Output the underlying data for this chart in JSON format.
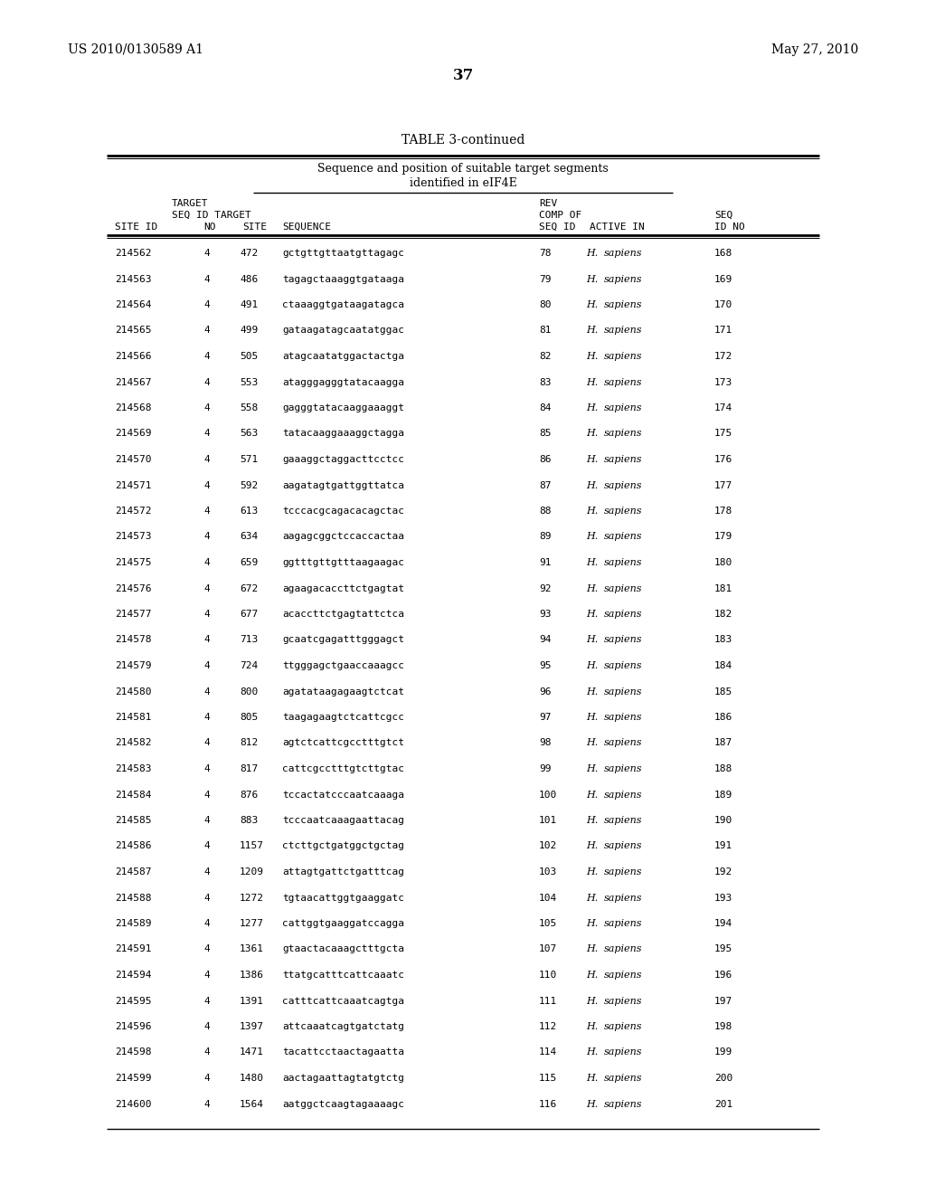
{
  "title_left": "US 2010/0130589 A1",
  "title_right": "May 27, 2010",
  "page_num": "37",
  "table_title": "TABLE 3-continued",
  "subtitle1": "Sequence and position of suitable target segments",
  "subtitle2": "identified in eIF4E",
  "rows": [
    [
      "214562",
      "4",
      "472",
      "gctgttgttaatgttagagc",
      "78",
      "H.",
      "sapiens",
      "168"
    ],
    [
      "214563",
      "4",
      "486",
      "tagagctaaaggtgataaga",
      "79",
      "H.",
      "sapiens",
      "169"
    ],
    [
      "214564",
      "4",
      "491",
      "ctaaaggtgataagatagca",
      "80",
      "H.",
      "sapiens",
      "170"
    ],
    [
      "214565",
      "4",
      "499",
      "gataagatagcaatatggac",
      "81",
      "H.",
      "sapiens",
      "171"
    ],
    [
      "214566",
      "4",
      "505",
      "atagcaatatggactactga",
      "82",
      "H.",
      "sapiens",
      "172"
    ],
    [
      "214567",
      "4",
      "553",
      "atagggagggtatacaagga",
      "83",
      "H.",
      "sapiens",
      "173"
    ],
    [
      "214568",
      "4",
      "558",
      "gagggtatacaaggaaaggt",
      "84",
      "H.",
      "sapiens",
      "174"
    ],
    [
      "214569",
      "4",
      "563",
      "tatacaaggaaaggctagga",
      "85",
      "H.",
      "sapiens",
      "175"
    ],
    [
      "214570",
      "4",
      "571",
      "gaaaggctaggacttcctcc",
      "86",
      "H.",
      "sapiens",
      "176"
    ],
    [
      "214571",
      "4",
      "592",
      "aagatagtgattggttatca",
      "87",
      "H.",
      "sapiens",
      "177"
    ],
    [
      "214572",
      "4",
      "613",
      "tcccacgcagacacagctac",
      "88",
      "H.",
      "sapiens",
      "178"
    ],
    [
      "214573",
      "4",
      "634",
      "aagagcggctccaccactaa",
      "89",
      "H.",
      "sapiens",
      "179"
    ],
    [
      "214575",
      "4",
      "659",
      "ggtttgttgtttaagaagac",
      "91",
      "H.",
      "sapiens",
      "180"
    ],
    [
      "214576",
      "4",
      "672",
      "agaagacaccttctgagtat",
      "92",
      "H.",
      "sapiens",
      "181"
    ],
    [
      "214577",
      "4",
      "677",
      "acaccttctgagtattctca",
      "93",
      "H.",
      "sapiens",
      "182"
    ],
    [
      "214578",
      "4",
      "713",
      "gcaatcgagatttgggagct",
      "94",
      "H.",
      "sapiens",
      "183"
    ],
    [
      "214579",
      "4",
      "724",
      "ttgggagctgaaccaaagcc",
      "95",
      "H.",
      "sapiens",
      "184"
    ],
    [
      "214580",
      "4",
      "800",
      "agatataagagaagtctcat",
      "96",
      "H.",
      "sapiens",
      "185"
    ],
    [
      "214581",
      "4",
      "805",
      "taagagaagtctcattcgcc",
      "97",
      "H.",
      "sapiens",
      "186"
    ],
    [
      "214582",
      "4",
      "812",
      "agtctcattcgcctttgtct",
      "98",
      "H.",
      "sapiens",
      "187"
    ],
    [
      "214583",
      "4",
      "817",
      "cattcgcctttgtcttgtac",
      "99",
      "H.",
      "sapiens",
      "188"
    ],
    [
      "214584",
      "4",
      "876",
      "tccactatcccaatcaaaga",
      "100",
      "H.",
      "sapiens",
      "189"
    ],
    [
      "214585",
      "4",
      "883",
      "tcccaatcaaagaattacag",
      "101",
      "H.",
      "sapiens",
      "190"
    ],
    [
      "214586",
      "4",
      "1157",
      "ctcttgctgatggctgctag",
      "102",
      "H.",
      "sapiens",
      "191"
    ],
    [
      "214587",
      "4",
      "1209",
      "attagtgattctgatttcag",
      "103",
      "H.",
      "sapiens",
      "192"
    ],
    [
      "214588",
      "4",
      "1272",
      "tgtaacattggtgaaggatc",
      "104",
      "H.",
      "sapiens",
      "193"
    ],
    [
      "214589",
      "4",
      "1277",
      "cattggtgaaggatccagga",
      "105",
      "H.",
      "sapiens",
      "194"
    ],
    [
      "214591",
      "4",
      "1361",
      "gtaactacaaagctttgcta",
      "107",
      "H.",
      "sapiens",
      "195"
    ],
    [
      "214594",
      "4",
      "1386",
      "ttatgcatttcattcaaatc",
      "110",
      "H.",
      "sapiens",
      "196"
    ],
    [
      "214595",
      "4",
      "1391",
      "catttcattcaaatcagtga",
      "111",
      "H.",
      "sapiens",
      "197"
    ],
    [
      "214596",
      "4",
      "1397",
      "attcaaatcagtgatctatg",
      "112",
      "H.",
      "sapiens",
      "198"
    ],
    [
      "214598",
      "4",
      "1471",
      "tacattcctaactagaatta",
      "114",
      "H.",
      "sapiens",
      "199"
    ],
    [
      "214599",
      "4",
      "1480",
      "aactagaattagtatgtctg",
      "115",
      "H.",
      "sapiens",
      "200"
    ],
    [
      "214600",
      "4",
      "1564",
      "aatggctcaagtagaaaagc",
      "116",
      "H.",
      "sapiens",
      "201"
    ]
  ],
  "bg_color": "#ffffff",
  "text_color": "#000000",
  "mono_font": "DejaVu Sans Mono",
  "serif_font": "DejaVu Serif"
}
